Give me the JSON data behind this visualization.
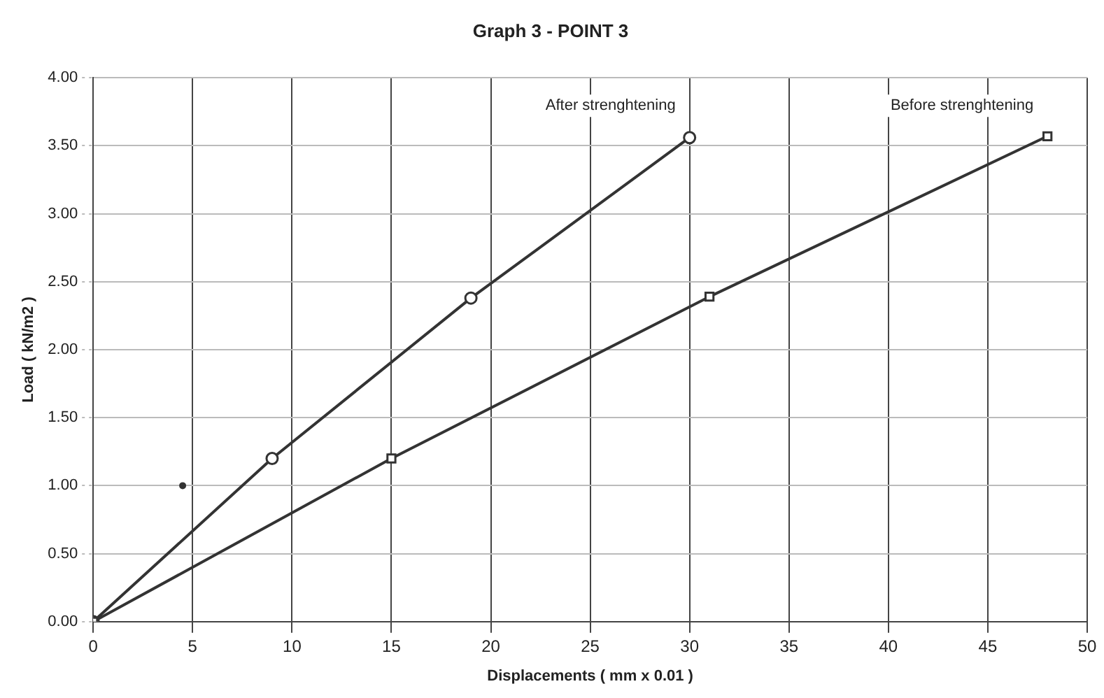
{
  "chart_data": {
    "type": "line",
    "title": "Graph 3 - POINT 3",
    "xlabel": "Displacements ( mm x 0.01 )",
    "ylabel": "Load ( kN/m2 )",
    "xlim": [
      0,
      50
    ],
    "xticks": [
      0,
      5,
      10,
      15,
      20,
      25,
      30,
      35,
      40,
      45,
      50
    ],
    "ylim": [
      0,
      4
    ],
    "yticks": [
      {
        "value": 0,
        "label": "0.00"
      },
      {
        "value": 0.5,
        "label": "0.50"
      },
      {
        "value": 1,
        "label": "1.00"
      },
      {
        "value": 1.5,
        "label": "1.50"
      },
      {
        "value": 2,
        "label": "2.00"
      },
      {
        "value": 2.5,
        "label": "2.50"
      },
      {
        "value": 3,
        "label": "3.00"
      },
      {
        "value": 3.5,
        "label": "3.50"
      },
      {
        "value": 4,
        "label": "4.00"
      }
    ],
    "grid": true,
    "legend": false,
    "series": [
      {
        "name": "After strenghtening",
        "color": "#333333",
        "marker": "circle",
        "x": [
          0,
          9,
          19,
          30
        ],
        "values": [
          0,
          1.2,
          2.38,
          3.56
        ]
      },
      {
        "name": "Before strenghtening",
        "color": "#333333",
        "marker": "square",
        "x": [
          0,
          15,
          31,
          48
        ],
        "values": [
          0,
          1.2,
          2.39,
          3.57
        ]
      },
      {
        "type": "scatter",
        "color": "#333333",
        "marker": "circle",
        "x": [
          4.5
        ],
        "values": [
          1.0
        ]
      }
    ]
  }
}
